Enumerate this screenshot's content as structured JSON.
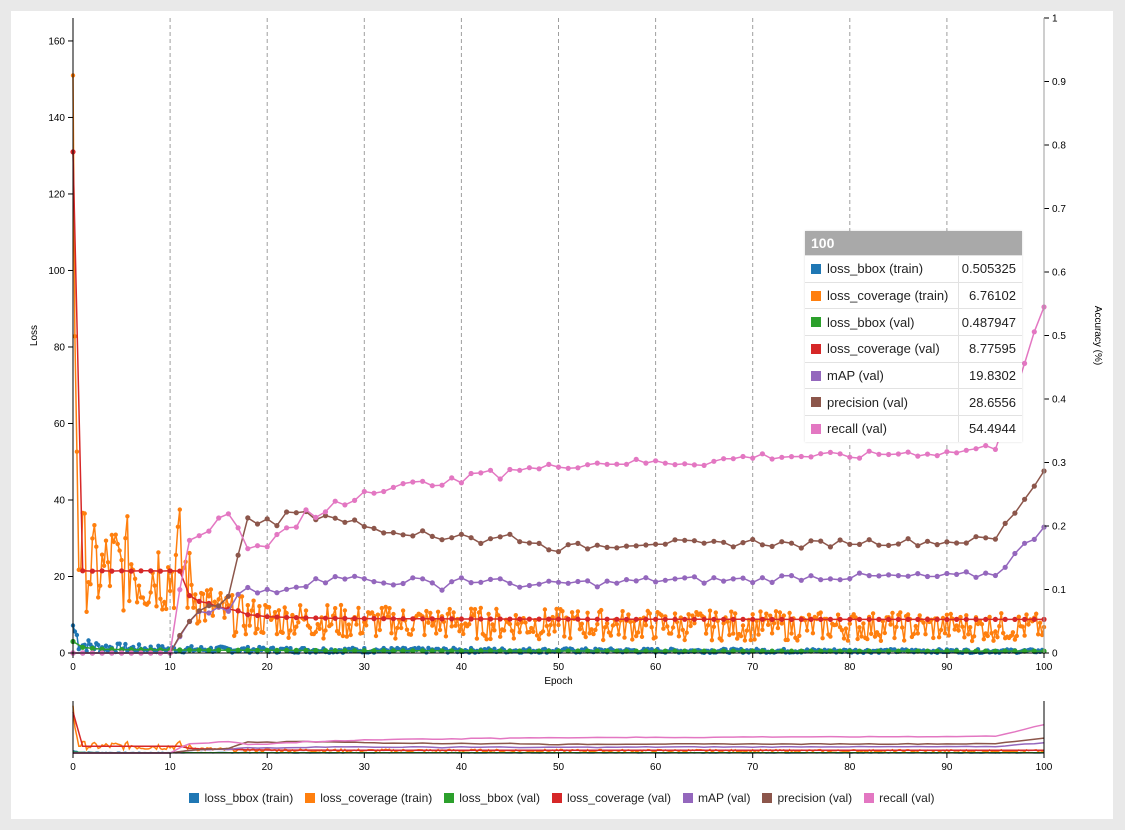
{
  "chart_data": {
    "type": "line",
    "xlabel": "Epoch",
    "ylabel": "Loss",
    "y2label": "Accuracy (%)",
    "xlim": [
      0,
      100
    ],
    "ylim": [
      0,
      166
    ],
    "y2lim": [
      0,
      1
    ],
    "x_ticks": [
      0,
      10,
      20,
      30,
      40,
      50,
      60,
      70,
      80,
      90,
      100
    ],
    "y_ticks": [
      0,
      20,
      40,
      60,
      80,
      100,
      120,
      140,
      160
    ],
    "y2_ticks": [
      0,
      0.1,
      0.2,
      0.3,
      0.4,
      0.5,
      0.6,
      0.7,
      0.8,
      0.9,
      1
    ],
    "grid": "vertical dashed",
    "legend": "bottom",
    "series": [
      {
        "name": "loss_bbox (train)",
        "color": "#1f77b4",
        "axis": "left",
        "kind": "train",
        "x": [
          0,
          0.5,
          1,
          2,
          3,
          5,
          8,
          10,
          15,
          20,
          30,
          40,
          50,
          60,
          70,
          80,
          90,
          100
        ],
        "values": [
          7.2,
          3.5,
          2.2,
          1.8,
          1.5,
          1.3,
          1.1,
          1.0,
          0.9,
          0.8,
          0.75,
          0.7,
          0.65,
          0.6,
          0.58,
          0.55,
          0.52,
          0.505325
        ]
      },
      {
        "name": "loss_coverage (train)",
        "color": "#ff7f0e",
        "axis": "left",
        "kind": "train",
        "x": [
          0,
          0.3,
          0.6,
          1,
          2,
          3,
          4,
          5,
          6,
          7,
          8,
          9,
          10,
          11,
          12,
          13,
          14,
          15,
          16,
          18,
          20,
          25,
          30,
          40,
          50,
          60,
          70,
          80,
          90,
          100
        ],
        "values": [
          151,
          75,
          30,
          25,
          22,
          21,
          23,
          22,
          24,
          20,
          21,
          22,
          20,
          25,
          18,
          14,
          12,
          11,
          10,
          9.5,
          9,
          8.5,
          8,
          7.8,
          7.5,
          7.3,
          7.1,
          7.0,
          6.9,
          6.76102
        ]
      },
      {
        "name": "loss_bbox (val)",
        "color": "#2ca02c",
        "axis": "left",
        "kind": "val",
        "x": [
          0,
          1,
          2,
          3,
          5,
          10,
          20,
          30,
          40,
          50,
          60,
          70,
          80,
          90,
          100
        ],
        "values": [
          3,
          1.5,
          1.2,
          1.0,
          0.9,
          0.8,
          0.7,
          0.6,
          0.55,
          0.52,
          0.5,
          0.5,
          0.49,
          0.49,
          0.487947
        ]
      },
      {
        "name": "loss_coverage (val)",
        "color": "#d62728",
        "axis": "left",
        "kind": "val",
        "x": [
          0,
          1,
          2,
          3,
          4,
          5,
          6,
          7,
          8,
          9,
          10,
          11,
          12,
          13,
          14,
          15,
          16,
          17,
          18,
          19,
          20,
          22,
          24,
          26,
          30,
          35,
          40,
          50,
          60,
          70,
          80,
          90,
          100
        ],
        "values": [
          131,
          21.5,
          21.4,
          21.5,
          21.4,
          21.5,
          21.4,
          21.5,
          21.5,
          21.4,
          21.5,
          21.4,
          15,
          13.5,
          13,
          12,
          11.5,
          11,
          10,
          9.8,
          9.5,
          9.3,
          9.2,
          9.1,
          9.0,
          8.95,
          8.9,
          8.85,
          8.8,
          8.8,
          8.78,
          8.77,
          8.77595
        ]
      },
      {
        "name": "mAP (val)",
        "color": "#9467bd",
        "axis": "right",
        "kind": "val",
        "x": [
          0,
          5,
          10,
          11,
          12,
          13,
          14,
          15,
          16,
          17,
          18,
          19,
          20,
          21,
          22,
          24,
          26,
          27,
          28,
          30,
          32,
          35,
          38,
          40,
          41,
          42,
          45,
          48,
          50,
          55,
          60,
          65,
          70,
          75,
          80,
          85,
          90,
          95,
          100
        ],
        "values": [
          0,
          0,
          0,
          0.02,
          0.05,
          0.06,
          0.065,
          0.07,
          0.065,
          0.09,
          0.1,
          0.095,
          0.1,
          0.1,
          0.105,
          0.11,
          0.115,
          0.125,
          0.12,
          0.115,
          0.11,
          0.115,
          0.105,
          0.12,
          0.11,
          0.115,
          0.11,
          0.105,
          0.11,
          0.11,
          0.115,
          0.115,
          0.115,
          0.12,
          0.12,
          0.12,
          0.12,
          0.125,
          0.198302
        ]
      },
      {
        "name": "precision (val)",
        "color": "#8c564b",
        "axis": "right",
        "kind": "val",
        "x": [
          0,
          5,
          10,
          11,
          12,
          13,
          14,
          15,
          16,
          17,
          18,
          19,
          20,
          21,
          22,
          23,
          24,
          25,
          26,
          27,
          28,
          30,
          32,
          35,
          38,
          40,
          42,
          45,
          48,
          50,
          55,
          60,
          65,
          70,
          75,
          80,
          85,
          90,
          95,
          100
        ],
        "values": [
          0,
          0,
          0,
          0.03,
          0.055,
          0.065,
          0.07,
          0.075,
          0.095,
          0.15,
          0.215,
          0.2,
          0.21,
          0.205,
          0.225,
          0.22,
          0.225,
          0.205,
          0.22,
          0.215,
          0.21,
          0.2,
          0.195,
          0.19,
          0.18,
          0.19,
          0.175,
          0.185,
          0.17,
          0.165,
          0.17,
          0.175,
          0.17,
          0.175,
          0.17,
          0.175,
          0.175,
          0.175,
          0.18,
          0.286556
        ]
      },
      {
        "name": "recall (val)",
        "color": "#e377c2",
        "axis": "right",
        "kind": "val",
        "x": [
          0,
          5,
          10,
          11,
          12,
          13,
          14,
          15,
          16,
          17,
          18,
          19,
          20,
          21,
          22,
          23,
          24,
          25,
          26,
          27,
          28,
          30,
          32,
          35,
          38,
          40,
          42,
          44,
          45,
          48,
          50,
          55,
          60,
          65,
          70,
          75,
          80,
          85,
          90,
          95,
          100
        ],
        "values": [
          0,
          0,
          0,
          0.1,
          0.18,
          0.19,
          0.19,
          0.21,
          0.22,
          0.2,
          0.17,
          0.165,
          0.165,
          0.185,
          0.195,
          0.2,
          0.22,
          0.215,
          0.22,
          0.24,
          0.235,
          0.255,
          0.26,
          0.265,
          0.27,
          0.27,
          0.285,
          0.28,
          0.29,
          0.29,
          0.295,
          0.3,
          0.3,
          0.3,
          0.31,
          0.31,
          0.31,
          0.315,
          0.315,
          0.325,
          0.544944
        ]
      }
    ]
  },
  "tooltip": {
    "epoch": "100",
    "rows": [
      {
        "name": "loss_bbox (train)",
        "value": "0.505325",
        "color": "#1f77b4"
      },
      {
        "name": "loss_coverage (train)",
        "value": "6.76102",
        "color": "#ff7f0e"
      },
      {
        "name": "loss_bbox (val)",
        "value": "0.487947",
        "color": "#2ca02c"
      },
      {
        "name": "loss_coverage (val)",
        "value": "8.77595",
        "color": "#d62728"
      },
      {
        "name": "mAP (val)",
        "value": "19.8302",
        "color": "#9467bd"
      },
      {
        "name": "precision (val)",
        "value": "28.6556",
        "color": "#8c564b"
      },
      {
        "name": "recall (val)",
        "value": "54.4944",
        "color": "#e377c2"
      }
    ]
  }
}
